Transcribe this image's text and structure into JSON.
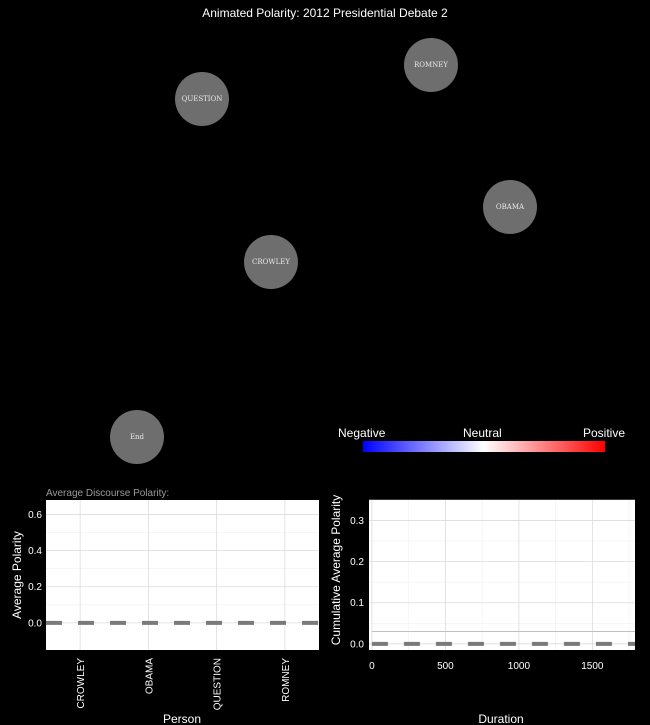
{
  "title": "Animated Polarity: 2012 Presidential Debate 2",
  "nodes": [
    {
      "id": "romney",
      "label": "ROMNEY"
    },
    {
      "id": "question",
      "label": "QUESTION"
    },
    {
      "id": "obama",
      "label": "OBAMA"
    },
    {
      "id": "crowley",
      "label": "CROWLEY"
    },
    {
      "id": "end",
      "label": "End"
    }
  ],
  "legend": {
    "negative": "Negative",
    "neutral": "Neutral",
    "positive": "Positive",
    "colors": [
      "#0000ff",
      "#ffffff",
      "#ff0000"
    ]
  },
  "chart_data": [
    {
      "type": "bar",
      "subtitle": "Average Discourse Polarity:",
      "categories": [
        "CROWLEY",
        "OBAMA",
        "QUESTION",
        "ROMNEY"
      ],
      "values": [
        0,
        0,
        0,
        0
      ],
      "reference_line": 0.0,
      "xlabel": "Person",
      "ylabel": "Average Polarity",
      "yticks": [
        "0.0",
        "0.2",
        "0.4",
        "0.6"
      ],
      "ylim": [
        -0.15,
        0.68
      ],
      "grid": true
    },
    {
      "type": "line",
      "xlabel": "Duration",
      "ylabel": "Cumulative Average Polarity",
      "xticks": [
        "0",
        "500",
        "1000",
        "1500"
      ],
      "yticks": [
        "0.0",
        "0.1",
        "0.2",
        "0.3"
      ],
      "xlim": [
        -20,
        1790
      ],
      "ylim": [
        -0.015,
        0.35
      ],
      "series": [
        {
          "x": [
            0,
            1790
          ],
          "y": [
            0.0,
            0.0
          ],
          "style": "dashed"
        },
        {
          "x": [
            0,
            1790
          ],
          "y": [
            0.03,
            0.03
          ],
          "style": "solid"
        }
      ],
      "grid": true
    }
  ]
}
